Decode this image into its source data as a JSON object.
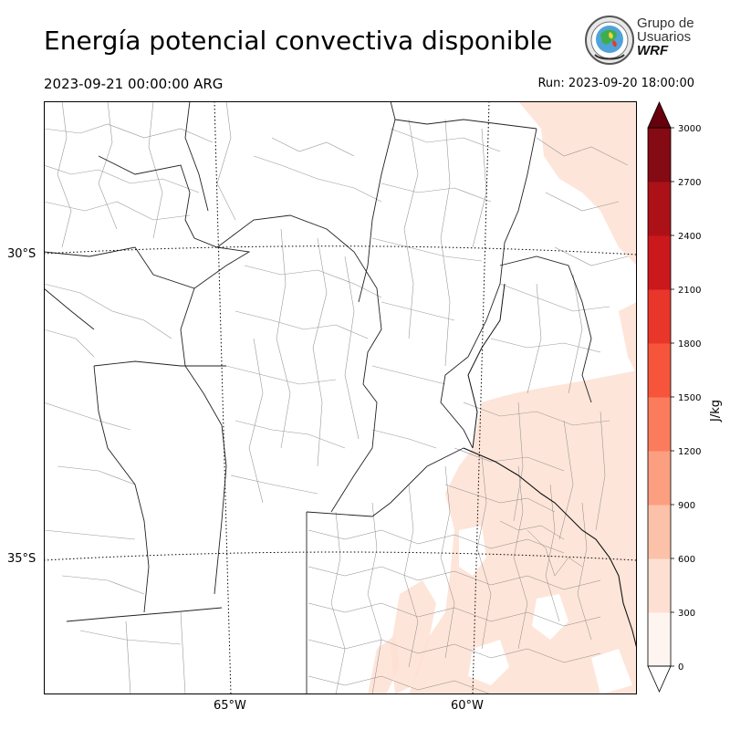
{
  "header": {
    "title": "Energía potencial convectiva disponible",
    "valid_time": "2023-09-21 00:00:00 ARG",
    "run_time": "Run: 2023-09-20 18:00:00"
  },
  "logo": {
    "line1": "Grupo de",
    "line2": "Usuarios",
    "line3": "WRF"
  },
  "map": {
    "lat_labels": [
      "30°S",
      "35°S"
    ],
    "lon_labels": [
      "65°W",
      "60°W"
    ]
  },
  "colorbar": {
    "unit": "J/kg",
    "ticks": [
      "0",
      "300",
      "600",
      "900",
      "1200",
      "1500",
      "1800",
      "2100",
      "2400",
      "2700",
      "3000"
    ],
    "colors": [
      "#fff5f0",
      "#fee0d2",
      "#fcc1a9",
      "#fc9f80",
      "#fb7c5c",
      "#f6553c",
      "#e9362a",
      "#cb181d",
      "#ac1117",
      "#840a13",
      "#67000d"
    ]
  }
}
